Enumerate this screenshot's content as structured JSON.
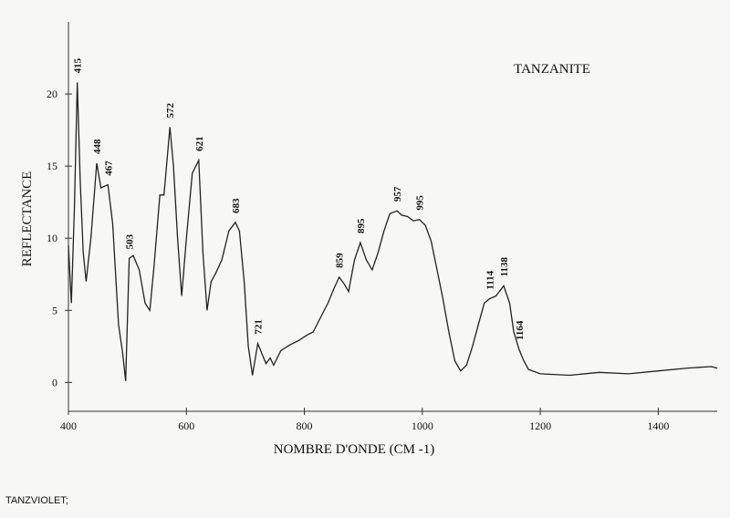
{
  "chart_data": {
    "type": "line",
    "title": "TANZANITE",
    "xlabel": "NOMBRE D'ONDE (CM -1)",
    "ylabel": "REFLECTANCE",
    "footer": "TANZVIOLET;",
    "x": [
      400,
      405,
      410,
      415,
      420,
      425,
      430,
      438,
      448,
      455,
      467,
      475,
      485,
      492,
      497,
      503,
      510,
      520,
      530,
      538,
      545,
      555,
      562,
      572,
      578,
      585,
      592,
      600,
      610,
      621,
      628,
      635,
      642,
      650,
      660,
      672,
      683,
      690,
      698,
      705,
      712,
      721,
      728,
      735,
      742,
      748,
      760,
      775,
      790,
      805,
      815,
      830,
      840,
      850,
      859,
      868,
      875,
      885,
      895,
      905,
      915,
      925,
      935,
      945,
      957,
      965,
      975,
      985,
      995,
      1005,
      1015,
      1025,
      1035,
      1045,
      1055,
      1065,
      1075,
      1085,
      1095,
      1105,
      1114,
      1125,
      1138,
      1148,
      1155,
      1164,
      1172,
      1180,
      1200,
      1250,
      1300,
      1350,
      1400,
      1450,
      1490,
      1500
    ],
    "series": [
      {
        "name": "TANZVIOLET",
        "color": "#222222",
        "values": [
          9.5,
          5.5,
          12,
          20.8,
          14,
          9,
          7,
          10,
          15.2,
          13.5,
          13.7,
          11,
          4,
          2,
          0.1,
          8.6,
          8.8,
          7.8,
          5.5,
          5.0,
          8,
          13,
          13,
          17.7,
          15,
          10,
          6,
          10,
          14.5,
          15.4,
          9,
          5,
          7,
          7.6,
          8.5,
          10.5,
          11.1,
          10.5,
          7,
          2.5,
          0.5,
          2.7,
          2,
          1.3,
          1.7,
          1.2,
          2.2,
          2.6,
          2.9,
          3.3,
          3.5,
          4.7,
          5.5,
          6.5,
          7.3,
          6.8,
          6.3,
          8.5,
          9.7,
          8.5,
          7.8,
          9,
          10.5,
          11.7,
          11.9,
          11.6,
          11.5,
          11.2,
          11.3,
          10.9,
          9.8,
          7.8,
          5.8,
          3.5,
          1.5,
          0.8,
          1.2,
          2.5,
          4,
          5.5,
          5.8,
          6.0,
          6.7,
          5.5,
          3.5,
          2.3,
          1.5,
          0.9,
          0.6,
          0.5,
          0.7,
          0.6,
          0.8,
          1.0,
          1.1,
          1.0
        ]
      }
    ],
    "peaks": [
      415,
      448,
      467,
      503,
      572,
      621,
      683,
      721,
      859,
      895,
      957,
      995,
      1114,
      1138,
      1164
    ],
    "xlim": [
      400,
      1500
    ],
    "ylim": [
      -2,
      25
    ],
    "xticks": [
      400,
      600,
      800,
      1000,
      1200,
      1400
    ],
    "yticks": [
      0,
      5,
      10,
      15,
      20
    ]
  }
}
